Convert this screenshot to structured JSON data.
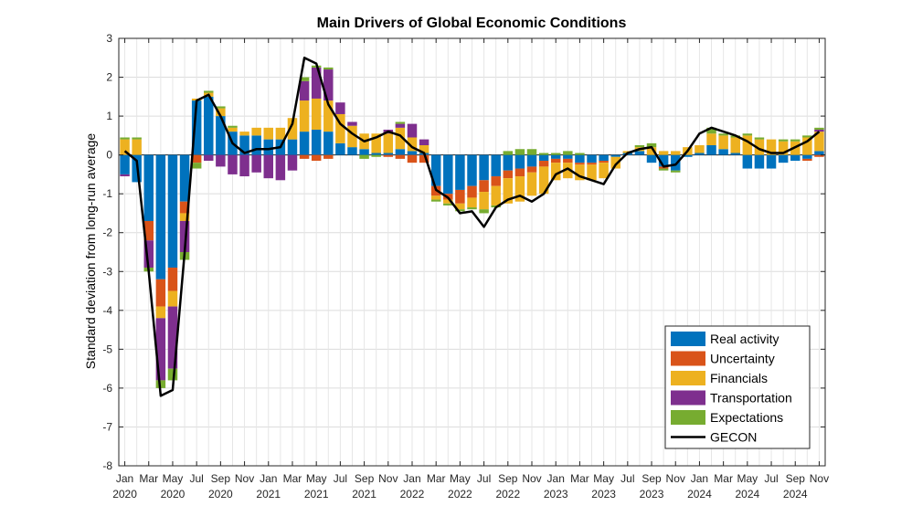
{
  "chart_data": {
    "type": "bar",
    "title": "Main Drivers of Global Economic Conditions",
    "xlabel": "",
    "ylabel": "Standard deviation from long-run average",
    "ylim": [
      -8,
      3
    ],
    "yticks": [
      3,
      2,
      1,
      0,
      -1,
      -2,
      -3,
      -4,
      -5,
      -6,
      -7,
      -8
    ],
    "grid": true,
    "legend_position": "bottom-right",
    "stacked": true,
    "x_tick_labels": [
      {
        "month": "Jan",
        "year": "2020"
      },
      {
        "month": "Mar",
        "year": ""
      },
      {
        "month": "May",
        "year": "2020"
      },
      {
        "month": "Jul",
        "year": ""
      },
      {
        "month": "Sep",
        "year": "2020"
      },
      {
        "month": "Nov",
        "year": ""
      },
      {
        "month": "Jan",
        "year": "2021"
      },
      {
        "month": "Mar",
        "year": ""
      },
      {
        "month": "May",
        "year": "2021"
      },
      {
        "month": "Jul",
        "year": ""
      },
      {
        "month": "Sep",
        "year": "2021"
      },
      {
        "month": "Nov",
        "year": ""
      },
      {
        "month": "Jan",
        "year": "2022"
      },
      {
        "month": "Mar",
        "year": ""
      },
      {
        "month": "May",
        "year": "2022"
      },
      {
        "month": "Jul",
        "year": ""
      },
      {
        "month": "Sep",
        "year": "2022"
      },
      {
        "month": "Nov",
        "year": ""
      },
      {
        "month": "Jan",
        "year": "2023"
      },
      {
        "month": "Mar",
        "year": ""
      },
      {
        "month": "May",
        "year": "2023"
      },
      {
        "month": "Jul",
        "year": ""
      },
      {
        "month": "Sep",
        "year": "2023"
      },
      {
        "month": "Nov",
        "year": ""
      },
      {
        "month": "Jan",
        "year": "2024"
      },
      {
        "month": "Mar",
        "year": ""
      },
      {
        "month": "May",
        "year": "2024"
      },
      {
        "month": "Jul",
        "year": ""
      },
      {
        "month": "Sep",
        "year": "2024"
      },
      {
        "month": "Nov",
        "year": ""
      }
    ],
    "categories": [
      "2020-01",
      "2020-02",
      "2020-03",
      "2020-04",
      "2020-05",
      "2020-06",
      "2020-07",
      "2020-08",
      "2020-09",
      "2020-10",
      "2020-11",
      "2020-12",
      "2021-01",
      "2021-02",
      "2021-03",
      "2021-04",
      "2021-05",
      "2021-06",
      "2021-07",
      "2021-08",
      "2021-09",
      "2021-10",
      "2021-11",
      "2021-12",
      "2022-01",
      "2022-02",
      "2022-03",
      "2022-04",
      "2022-05",
      "2022-06",
      "2022-07",
      "2022-08",
      "2022-09",
      "2022-10",
      "2022-11",
      "2022-12",
      "2023-01",
      "2023-02",
      "2023-03",
      "2023-04",
      "2023-05",
      "2023-06",
      "2023-07",
      "2023-08",
      "2023-09",
      "2023-10",
      "2023-11",
      "2023-12",
      "2024-01",
      "2024-02",
      "2024-03",
      "2024-04",
      "2024-05",
      "2024-06",
      "2024-07",
      "2024-08",
      "2024-09",
      "2024-10",
      "2024-11"
    ],
    "series": [
      {
        "name": "Real activity",
        "color": "#0072BD",
        "values": [
          -0.5,
          -0.7,
          -1.7,
          -3.2,
          -2.9,
          -1.2,
          1.4,
          1.5,
          1.0,
          0.6,
          0.5,
          0.5,
          0.4,
          0.4,
          0.4,
          0.6,
          0.65,
          0.6,
          0.3,
          0.2,
          0.15,
          0.05,
          0.05,
          0.15,
          0.1,
          0.05,
          -0.8,
          -1.0,
          -0.9,
          -0.8,
          -0.65,
          -0.55,
          -0.4,
          -0.35,
          -0.3,
          -0.15,
          -0.1,
          -0.1,
          -0.2,
          -0.2,
          -0.15,
          -0.05,
          0.05,
          0.1,
          -0.2,
          -0.3,
          -0.4,
          -0.05,
          0.05,
          0.25,
          0.15,
          0.05,
          -0.35,
          -0.35,
          -0.35,
          -0.2,
          -0.15,
          -0.1,
          0.1
        ]
      },
      {
        "name": "Uncertainty",
        "color": "#D95319",
        "values": [
          0,
          0,
          -0.5,
          -0.7,
          -0.6,
          -0.3,
          -0.2,
          0,
          0,
          0,
          0,
          0,
          0,
          0,
          0,
          -0.1,
          -0.15,
          -0.1,
          0,
          0,
          0,
          0,
          -0.05,
          -0.1,
          -0.2,
          -0.2,
          -0.25,
          -0.15,
          -0.35,
          -0.3,
          -0.3,
          -0.25,
          -0.2,
          -0.2,
          -0.15,
          -0.15,
          -0.1,
          -0.1,
          -0.05,
          -0.05,
          -0.05,
          0,
          0,
          0,
          0,
          -0.05,
          0,
          0,
          0,
          0,
          0,
          0,
          0,
          0,
          0,
          0,
          0,
          -0.05,
          -0.05
        ]
      },
      {
        "name": "Financials",
        "color": "#EDB120",
        "values": [
          0.4,
          0.4,
          0,
          -0.3,
          -0.4,
          -0.2,
          0.05,
          0.1,
          0.2,
          0.1,
          0.1,
          0.2,
          0.3,
          0.3,
          0.55,
          0.8,
          0.8,
          0.8,
          0.75,
          0.55,
          0.4,
          0.5,
          0.5,
          0.55,
          0.35,
          0.2,
          -0.1,
          -0.1,
          -0.15,
          -0.25,
          -0.45,
          -0.5,
          -0.65,
          -0.65,
          -0.6,
          -0.7,
          -0.45,
          -0.4,
          -0.4,
          -0.4,
          -0.4,
          -0.3,
          0.05,
          0.1,
          0.2,
          0.1,
          0.1,
          0.2,
          0.2,
          0.3,
          0.35,
          0.4,
          0.5,
          0.4,
          0.4,
          0.35,
          0.35,
          0.45,
          0.5
        ]
      },
      {
        "name": "Transportation",
        "color": "#7E2F8E",
        "values": [
          -0.05,
          0,
          -0.7,
          -1.6,
          -1.6,
          -0.8,
          0,
          -0.15,
          -0.3,
          -0.5,
          -0.55,
          -0.45,
          -0.6,
          -0.65,
          -0.4,
          0.5,
          0.8,
          0.8,
          0.3,
          0.1,
          0,
          0,
          0.1,
          0.1,
          0.35,
          0.15,
          0,
          0,
          0,
          0,
          0,
          0,
          0,
          0,
          0,
          0,
          0,
          0,
          0,
          0,
          0,
          0,
          0,
          0,
          0,
          0,
          0,
          0,
          0,
          0,
          0,
          0,
          0,
          0,
          0,
          0,
          0,
          0,
          0.05
        ]
      },
      {
        "name": "Expectations",
        "color": "#77AC30",
        "values": [
          0.05,
          0.05,
          -0.1,
          -0.2,
          -0.3,
          -0.2,
          -0.15,
          0.05,
          0.05,
          0.05,
          0,
          0,
          0,
          0,
          0,
          0.1,
          0.05,
          0.05,
          0,
          0,
          -0.1,
          -0.05,
          0,
          0.05,
          0,
          0,
          -0.05,
          -0.05,
          -0.05,
          -0.05,
          -0.1,
          -0.05,
          0.1,
          0.15,
          0.15,
          0.05,
          0.05,
          0.1,
          0.05,
          0,
          0,
          0,
          0,
          0.05,
          0.1,
          -0.05,
          -0.05,
          0,
          0,
          0.15,
          0.05,
          0.05,
          0.05,
          0.05,
          0,
          0.05,
          0.05,
          0.05,
          0.05
        ]
      }
    ],
    "line_series": {
      "name": "GECON",
      "color": "#000000",
      "values": [
        0.1,
        -0.15,
        -3.0,
        -6.2,
        -6.05,
        -2.5,
        1.4,
        1.55,
        1.0,
        0.3,
        0.05,
        0.15,
        0.15,
        0.2,
        0.8,
        2.5,
        2.35,
        1.3,
        0.8,
        0.55,
        0.35,
        0.45,
        0.6,
        0.5,
        0.2,
        0.05,
        -0.9,
        -1.1,
        -1.5,
        -1.45,
        -1.85,
        -1.35,
        -1.15,
        -1.05,
        -1.2,
        -1.0,
        -0.5,
        -0.35,
        -0.55,
        -0.65,
        -0.75,
        -0.25,
        0.05,
        0.15,
        0.2,
        -0.3,
        -0.25,
        0.1,
        0.55,
        0.7,
        0.6,
        0.5,
        0.35,
        0.15,
        0.05,
        0.05,
        0.2,
        0.35,
        0.6
      ]
    },
    "legend": [
      "Real activity",
      "Uncertainty",
      "Financials",
      "Transportation",
      "Expectations",
      "GECON"
    ]
  }
}
